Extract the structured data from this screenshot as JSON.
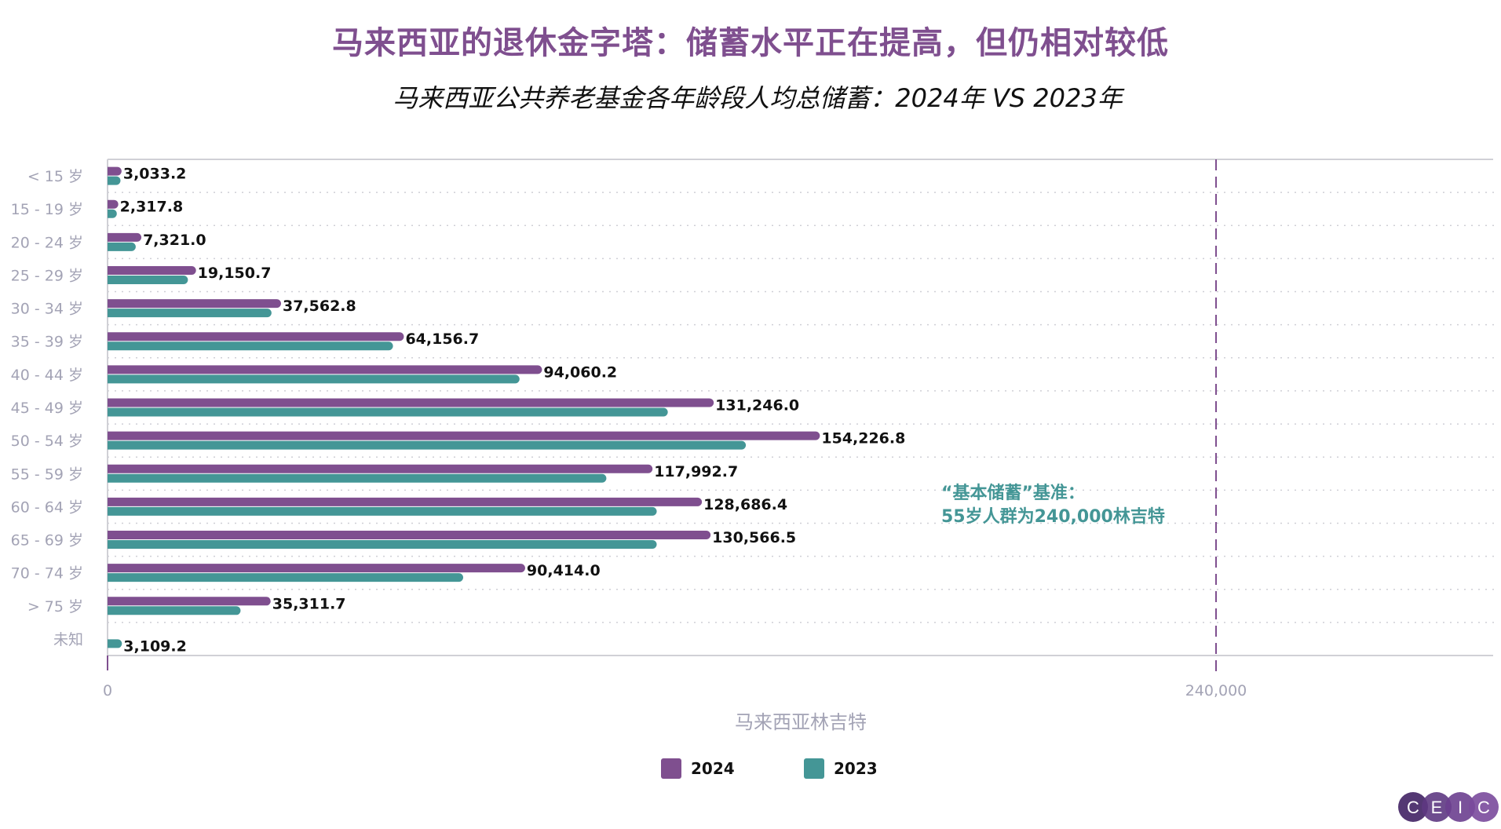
{
  "header": {
    "title": "马来西亚的退休金字塔：储蓄水平正在提高，但仍相对较低",
    "subtitle": "马来西亚公共养老基金各年龄段人均总储蓄：2024年 VS 2023年"
  },
  "colors": {
    "series_2024": "#7f4f8f",
    "series_2023": "#449696",
    "title": "#7f4f8f",
    "annotation": "#449696",
    "axis_text": "#a3a3b5",
    "benchmark_line": "#7f4f8f"
  },
  "chart_data": {
    "type": "bar",
    "orientation": "horizontal",
    "title": "马来西亚的退休金字塔：储蓄水平正在提高，但仍相对较低",
    "subtitle": "马来西亚公共养老基金各年龄段人均总储蓄：2024年 VS 2023年",
    "xlabel": "马来西亚林吉特",
    "ylabel": "",
    "xlim": [
      0,
      246000
    ],
    "xticks": [
      0,
      240000
    ],
    "xtick_labels": [
      "0",
      "240,000"
    ],
    "grid": "horizontal dotted",
    "legend_position": "bottom-center",
    "categories": [
      "< 15 岁",
      "15 - 19 岁",
      "20 - 24 岁",
      "25 - 29 岁",
      "30 - 34 岁",
      "35 - 39 岁",
      "40 - 44 岁",
      "45 - 49 岁",
      "50 - 54 岁",
      "55 - 59 岁",
      "60 - 64 岁",
      "65 - 69 岁",
      "70 - 74 岁",
      "> 75 岁",
      "未知"
    ],
    "series": [
      {
        "name": "2024",
        "values": [
          3033.2,
          2317.8,
          7321.0,
          19150.7,
          37562.8,
          64156.7,
          94060.2,
          131246.0,
          154226.8,
          117992.7,
          128686.4,
          130566.5,
          90414.0,
          35311.7,
          null
        ],
        "labels": [
          "3,033.2",
          "2,317.8",
          "7,321.0",
          "19,150.7",
          "37,562.8",
          "64,156.7",
          "94,060.2",
          "131,246.0",
          "154,226.8",
          "117,992.7",
          "128,686.4",
          "130,566.5",
          "90,414.0",
          "35,311.7",
          null
        ]
      },
      {
        "name": "2023",
        "values": [
          2800,
          2000,
          6100,
          17400,
          35500,
          61800,
          89200,
          121300,
          138200,
          108000,
          118900,
          118900,
          77000,
          28800,
          3109.2
        ],
        "labels": [
          null,
          null,
          null,
          null,
          null,
          null,
          null,
          null,
          null,
          null,
          null,
          null,
          null,
          null,
          "3,109.2"
        ]
      }
    ],
    "reference_line": {
      "value": 240000,
      "style": "dashed",
      "annotation": [
        "“基本储蓄”基准：",
        "55岁人群为240,000林吉特"
      ]
    }
  },
  "legend": {
    "items": [
      {
        "label": "2024"
      },
      {
        "label": "2023"
      }
    ]
  },
  "logo": {
    "letters": [
      "C",
      "E",
      "I",
      "C"
    ]
  }
}
